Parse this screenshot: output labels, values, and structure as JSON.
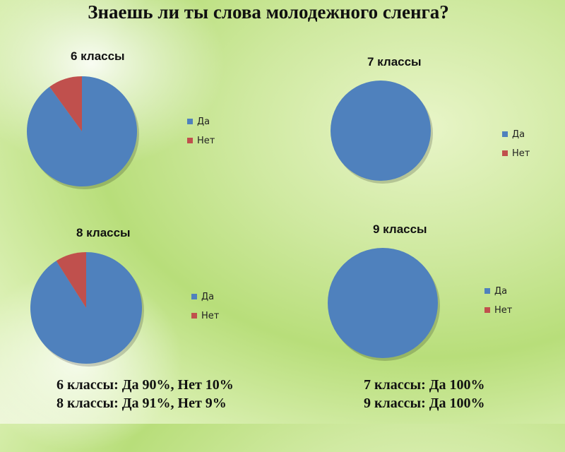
{
  "title": "Знаешь ли ты слова молодежного сленга?",
  "colors": {
    "yes": "#4f81bd",
    "no": "#c0504d"
  },
  "chart_data": [
    {
      "type": "pie",
      "title": "6 классы",
      "categories": [
        "Да",
        "Нет"
      ],
      "values": [
        90,
        10
      ],
      "legend": "right"
    },
    {
      "type": "pie",
      "title": "7 классы",
      "categories": [
        "Да",
        "Нет"
      ],
      "values": [
        100,
        0
      ],
      "legend": "right"
    },
    {
      "type": "pie",
      "title": "8 классы",
      "categories": [
        "Да",
        "Нет"
      ],
      "values": [
        91,
        9
      ],
      "legend": "right"
    },
    {
      "type": "pie",
      "title": "9 классы",
      "categories": [
        "Да",
        "Нет"
      ],
      "values": [
        100,
        0
      ],
      "legend": "right"
    }
  ],
  "summary": {
    "left": [
      "6 классы: Да 90%, Нет 10%",
      "8 классы: Да 91%, Нет 9%"
    ],
    "right": [
      "7 классы: Да 100%",
      "9 классы: Да 100%"
    ]
  }
}
